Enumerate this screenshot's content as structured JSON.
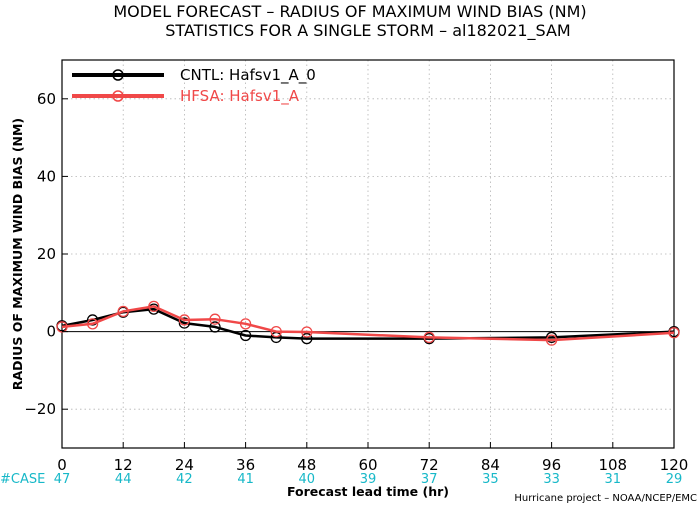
{
  "chart_data": {
    "type": "line",
    "title": "MODEL FORECAST – RADIUS OF MAXIMUM WIND BIAS (NM)",
    "subtitle": "STATISTICS FOR A SINGLE STORM – al182021_SAM",
    "xlabel": "Forecast lead time (hr)",
    "ylabel": "RADIUS OF MAXIMUM WIND BIAS (NM)",
    "xlim": [
      0,
      120
    ],
    "ylim": [
      -30,
      70
    ],
    "x_ticks": [
      0,
      12,
      24,
      36,
      48,
      60,
      72,
      84,
      96,
      108,
      120
    ],
    "y_ticks": [
      -20,
      0,
      20,
      40,
      60
    ],
    "y_tick_labels": [
      "−20",
      "0",
      "20",
      "40",
      "60"
    ],
    "grid": true,
    "legend_position": "top-left",
    "series": [
      {
        "name": "CNTL: Hafsv1_A_0",
        "color": "#000000",
        "x": [
          0,
          6,
          12,
          18,
          24,
          30,
          36,
          42,
          48,
          72,
          96,
          120
        ],
        "y": [
          1.5,
          3.0,
          5.0,
          5.8,
          2.2,
          1.2,
          -1.0,
          -1.5,
          -1.8,
          -1.8,
          -1.5,
          0.0
        ]
      },
      {
        "name": "HFSA: Hafsv1_A",
        "color": "#f04848",
        "x": [
          0,
          6,
          12,
          18,
          24,
          30,
          36,
          42,
          48,
          72,
          96,
          120
        ],
        "y": [
          1.2,
          2.0,
          5.2,
          6.5,
          3.0,
          3.2,
          2.0,
          0.0,
          -0.1,
          -1.5,
          -2.2,
          -0.3
        ]
      }
    ],
    "case_label": "#CASE",
    "case_counts": [
      {
        "x": 0,
        "n": "47"
      },
      {
        "x": 12,
        "n": "44"
      },
      {
        "x": 24,
        "n": "42"
      },
      {
        "x": 36,
        "n": "41"
      },
      {
        "x": 48,
        "n": "40"
      },
      {
        "x": 60,
        "n": "39"
      },
      {
        "x": 72,
        "n": "37"
      },
      {
        "x": 84,
        "n": "35"
      },
      {
        "x": 96,
        "n": "33"
      },
      {
        "x": 108,
        "n": "31"
      },
      {
        "x": 120,
        "n": "29"
      }
    ],
    "credit": "Hurricane project – NOAA/NCEP/EMC"
  }
}
